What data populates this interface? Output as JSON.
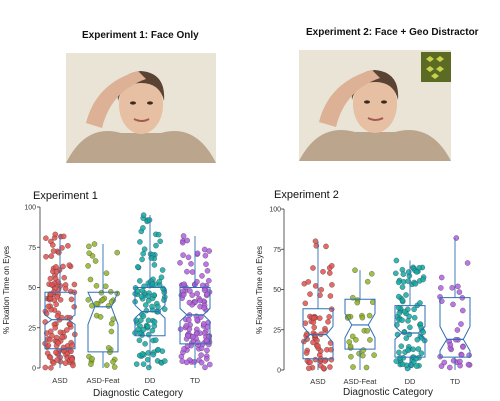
{
  "headers": {
    "exp1": "Experiment 1: Face Only",
    "exp2": "Experiment 2: Face + Geo Distractor"
  },
  "colors": {
    "ASD": "#e0514f",
    "ASD-Feat": "#8fb32a",
    "DD": "#13a9a6",
    "TD": "#b15fe0",
    "box": "#2f6fb5",
    "photo_bg": "#e9e4d6",
    "skin": "#e7bfa3",
    "shirt": "#bba68d",
    "hair": "#5a4333",
    "geo_bg": "#5c6b24",
    "geo_fg": "#c8d34a"
  },
  "chart_data": [
    {
      "type": "box",
      "title": "Experiment 1",
      "xlabel": "Diagnostic Category",
      "ylabel": "% Fixation Time on Eyes",
      "ylim": [
        0,
        100
      ],
      "yticks": [
        0,
        25,
        50,
        75,
        100
      ],
      "categories": [
        "ASD",
        "ASD-Feat",
        "DD",
        "TD"
      ],
      "notched": true,
      "series": [
        {
          "name": "ASD",
          "q1": 12,
          "median": 30,
          "q3": 47,
          "notch": [
            27,
            33
          ],
          "min": 0,
          "max": 83,
          "n": 130
        },
        {
          "name": "ASD-Feat",
          "q1": 10,
          "median": 38,
          "q3": 47,
          "notch": [
            27,
            47
          ],
          "min": 0,
          "max": 77,
          "n": 40
        },
        {
          "name": "DD",
          "q1": 20,
          "median": 35,
          "q3": 50,
          "notch": [
            31,
            39
          ],
          "min": 0,
          "max": 95,
          "n": 110
        },
        {
          "name": "TD",
          "q1": 15,
          "median": 33,
          "q3": 50,
          "notch": [
            29,
            37
          ],
          "min": 0,
          "max": 82,
          "n": 120
        }
      ]
    },
    {
      "type": "box",
      "title": "Experiment 2",
      "xlabel": "Diagnostic Category",
      "ylabel": "% Fixation Time on Eyes",
      "ylim": [
        0,
        100
      ],
      "yticks": [
        0,
        25,
        50,
        75,
        100
      ],
      "categories": [
        "ASD",
        "ASD-Feat",
        "DD",
        "TD"
      ],
      "notched": true,
      "series": [
        {
          "name": "ASD",
          "q1": 7,
          "median": 22,
          "q3": 38,
          "notch": [
            17,
            27
          ],
          "min": 0,
          "max": 80,
          "n": 70
        },
        {
          "name": "ASD-Feat",
          "q1": 13,
          "median": 28,
          "q3": 44,
          "notch": [
            20,
            35
          ],
          "min": 0,
          "max": 62,
          "n": 28
        },
        {
          "name": "DD",
          "q1": 8,
          "median": 23,
          "q3": 40,
          "notch": [
            19,
            27
          ],
          "min": 0,
          "max": 68,
          "n": 90
        },
        {
          "name": "TD",
          "q1": 8,
          "median": 19,
          "q3": 45,
          "notch": [
            12,
            27
          ],
          "min": 0,
          "max": 82,
          "n": 35
        }
      ]
    }
  ]
}
